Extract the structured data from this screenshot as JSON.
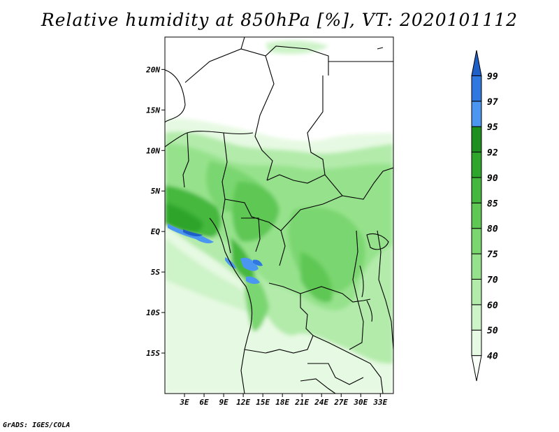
{
  "title": "Relative humidity at 850hPa [%], VT: 2020101112",
  "credit": "GrADS: IGES/COLA",
  "map": {
    "lat_labels": [
      "20N",
      "15N",
      "10N",
      "5N",
      "EQ",
      "5S",
      "10S",
      "15S"
    ],
    "lon_labels": [
      "3E",
      "6E",
      "9E",
      "12E",
      "15E",
      "18E",
      "21E",
      "24E",
      "27E",
      "30E",
      "33E"
    ],
    "lat_range": [
      -20,
      24
    ],
    "lon_range": [
      0,
      35
    ]
  },
  "colorbar": {
    "levels": [
      "40",
      "50",
      "60",
      "70",
      "75",
      "80",
      "85",
      "90",
      "92",
      "95",
      "97",
      "99"
    ],
    "colors": [
      "#fafffa",
      "#e6f9e2",
      "#cdf3c8",
      "#b2ebaa",
      "#96e28c",
      "#7ad66f",
      "#5fc855",
      "#44b83d",
      "#2ea52b",
      "#1d8f1f",
      "#4a96f0",
      "#2f78e0",
      "#1f5fc8"
    ]
  }
}
